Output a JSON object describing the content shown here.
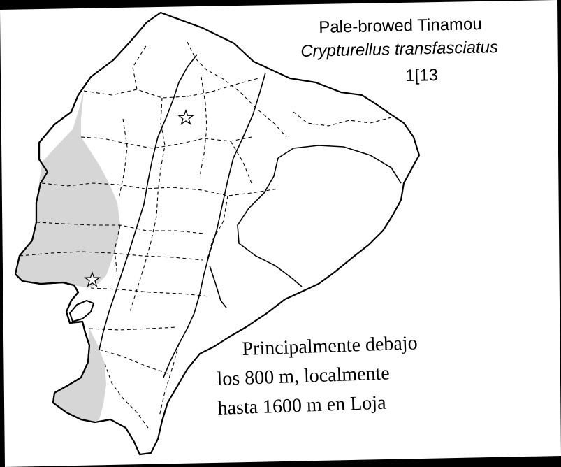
{
  "map": {
    "common_name": "Pale-browed Tinamou",
    "scientific_name": "Crypturellus transfasciatus",
    "plate_code": "1[13",
    "note_lines": [
      "Principalmente debajo",
      "los 800 m, localmente",
      "hasta 1600 m en Loja"
    ],
    "colors": {
      "background": "#000000",
      "sheet": "#ffffff",
      "range_fill": "#d6d6d6",
      "outline": "#000000"
    },
    "range_shading": "light gray along the western lowlands",
    "markers": [
      "star-icon",
      "star-icon"
    ]
  }
}
